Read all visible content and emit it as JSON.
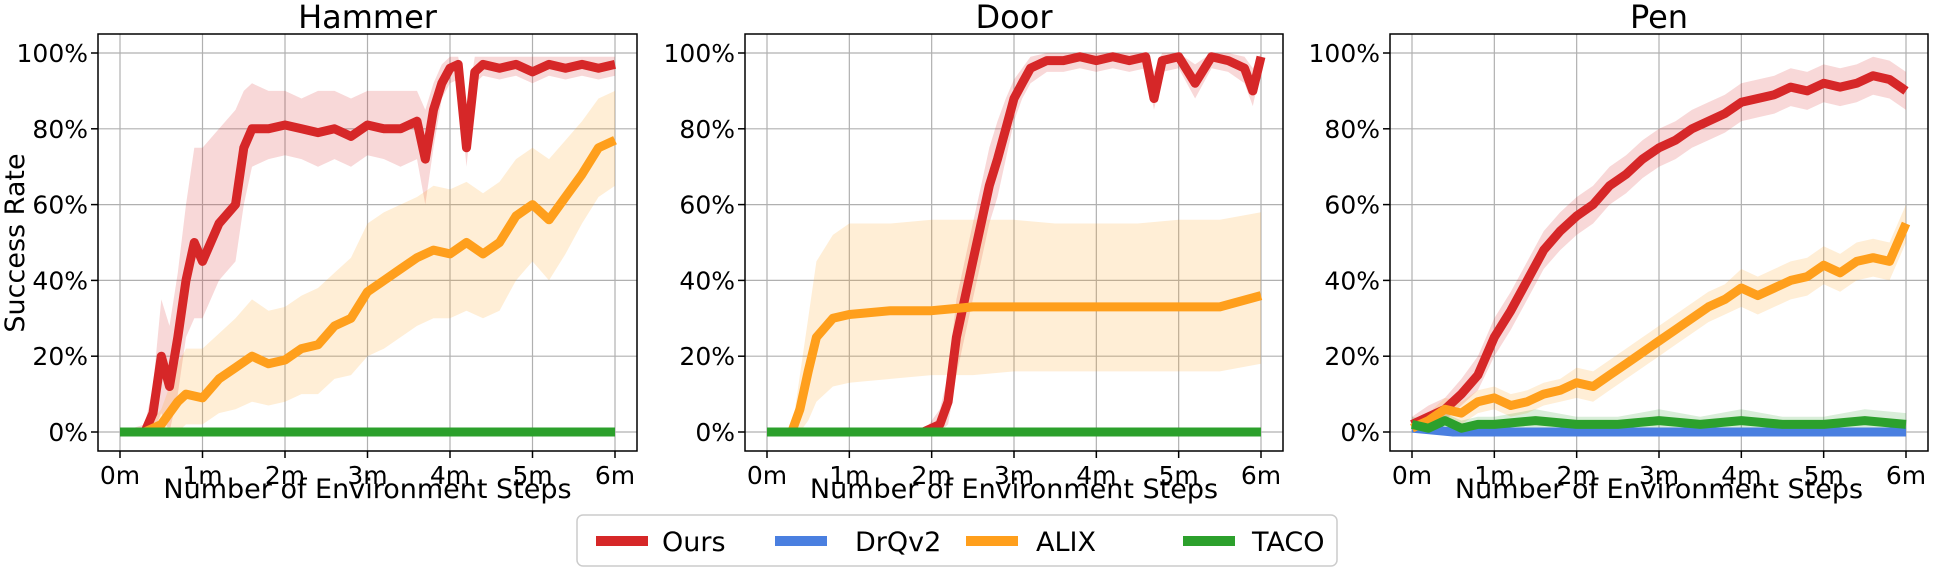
{
  "figure": {
    "ylabel": "Success Rate",
    "xlabel": "Number of Environment Steps",
    "legend": [
      "Ours",
      "DrQv2",
      "ALIX",
      "TACO"
    ],
    "legend_placement": "bottom-center"
  },
  "colors": {
    "Ours": "#d62728",
    "DrQv2": "#4a7fe0",
    "ALIX": "#ff9f1c",
    "TACO": "#2ca02c",
    "grid": "#b0b0b0"
  },
  "chart_data": [
    {
      "type": "line",
      "title": "Hammer",
      "xlabel": "Number of Environment Steps",
      "ylabel": "Success Rate",
      "xlim": [
        0,
        6
      ],
      "ylim": [
        0,
        100
      ],
      "x_ticks": [
        "0m",
        "1m",
        "2m",
        "3m",
        "4m",
        "5m",
        "6m"
      ],
      "y_ticks": [
        "0%",
        "20%",
        "40%",
        "60%",
        "80%",
        "100%"
      ],
      "grid": true,
      "series": [
        {
          "name": "Ours",
          "x": [
            0,
            0.3,
            0.4,
            0.5,
            0.6,
            0.7,
            0.8,
            0.9,
            1.0,
            1.2,
            1.4,
            1.5,
            1.6,
            1.8,
            2.0,
            2.2,
            2.4,
            2.6,
            2.8,
            3.0,
            3.2,
            3.4,
            3.6,
            3.7,
            3.8,
            3.9,
            4.0,
            4.1,
            4.2,
            4.3,
            4.4,
            4.6,
            4.8,
            5.0,
            5.2,
            5.4,
            5.6,
            5.8,
            6.0
          ],
          "y": [
            0,
            0,
            5,
            20,
            12,
            25,
            40,
            50,
            45,
            55,
            60,
            75,
            80,
            80,
            81,
            80,
            79,
            80,
            78,
            81,
            80,
            80,
            82,
            72,
            85,
            92,
            96,
            97,
            75,
            95,
            97,
            96,
            97,
            95,
            97,
            96,
            97,
            96,
            97
          ],
          "lower": [
            0,
            0,
            0,
            5,
            0,
            10,
            25,
            30,
            30,
            40,
            45,
            60,
            70,
            72,
            73,
            72,
            70,
            72,
            70,
            73,
            72,
            70,
            72,
            60,
            75,
            88,
            92,
            93,
            70,
            92,
            94,
            93,
            94,
            92,
            94,
            93,
            94,
            93,
            94
          ],
          "upper": [
            0,
            2,
            12,
            35,
            28,
            42,
            60,
            75,
            75,
            80,
            85,
            90,
            92,
            90,
            90,
            88,
            90,
            90,
            88,
            90,
            90,
            90,
            90,
            85,
            92,
            97,
            99,
            99,
            85,
            99,
            99,
            99,
            99,
            99,
            99,
            99,
            99,
            99,
            99
          ]
        },
        {
          "name": "DrQv2",
          "x": [
            0,
            6
          ],
          "y": [
            0,
            0
          ]
        },
        {
          "name": "ALIX",
          "x": [
            0,
            0.3,
            0.5,
            0.7,
            0.8,
            1.0,
            1.2,
            1.4,
            1.6,
            1.8,
            2.0,
            2.2,
            2.4,
            2.6,
            2.8,
            3.0,
            3.2,
            3.4,
            3.6,
            3.8,
            4.0,
            4.2,
            4.4,
            4.6,
            4.8,
            5.0,
            5.2,
            5.4,
            5.6,
            5.8,
            6.0
          ],
          "y": [
            0,
            0,
            2,
            8,
            10,
            9,
            14,
            17,
            20,
            18,
            19,
            22,
            23,
            28,
            30,
            37,
            40,
            43,
            46,
            48,
            47,
            50,
            47,
            50,
            57,
            60,
            56,
            62,
            68,
            75,
            77
          ],
          "lower": [
            0,
            0,
            0,
            0,
            2,
            2,
            5,
            6,
            8,
            7,
            8,
            10,
            10,
            14,
            15,
            20,
            22,
            25,
            28,
            30,
            30,
            32,
            30,
            32,
            40,
            45,
            40,
            47,
            55,
            62,
            65
          ],
          "upper": [
            0,
            1,
            6,
            18,
            22,
            22,
            26,
            30,
            35,
            32,
            33,
            36,
            38,
            42,
            46,
            55,
            58,
            60,
            62,
            65,
            64,
            66,
            63,
            66,
            72,
            75,
            72,
            77,
            82,
            88,
            90
          ]
        },
        {
          "name": "TACO",
          "x": [
            0,
            6
          ],
          "y": [
            0,
            0
          ]
        }
      ]
    },
    {
      "type": "line",
      "title": "Door",
      "xlabel": "Number of Environment Steps",
      "ylabel": "",
      "xlim": [
        0,
        6
      ],
      "ylim": [
        0,
        100
      ],
      "x_ticks": [
        "0m",
        "1m",
        "2m",
        "3m",
        "4m",
        "5m",
        "6m"
      ],
      "y_ticks": [
        "0%",
        "20%",
        "40%",
        "60%",
        "80%",
        "100%"
      ],
      "grid": true,
      "series": [
        {
          "name": "Ours",
          "x": [
            0,
            1.9,
            2.0,
            2.1,
            2.2,
            2.3,
            2.4,
            2.5,
            2.6,
            2.7,
            2.8,
            2.9,
            3.0,
            3.1,
            3.2,
            3.4,
            3.6,
            3.8,
            4.0,
            4.2,
            4.4,
            4.6,
            4.7,
            4.8,
            5.0,
            5.2,
            5.4,
            5.6,
            5.8,
            5.9,
            6.0
          ],
          "y": [
            0,
            0,
            1,
            2,
            8,
            25,
            35,
            45,
            55,
            65,
            72,
            80,
            88,
            92,
            96,
            98,
            98,
            99,
            98,
            99,
            98,
            99,
            88,
            98,
            99,
            92,
            99,
            98,
            96,
            90,
            99
          ],
          "lower": [
            0,
            0,
            0,
            0,
            2,
            15,
            25,
            35,
            45,
            55,
            62,
            72,
            82,
            88,
            92,
            95,
            95,
            96,
            95,
            96,
            95,
            96,
            85,
            95,
            96,
            88,
            96,
            95,
            92,
            86,
            96
          ],
          "upper": [
            0,
            0,
            3,
            6,
            15,
            35,
            45,
            55,
            65,
            75,
            82,
            88,
            93,
            96,
            99,
            100,
            100,
            100,
            100,
            100,
            100,
            100,
            95,
            100,
            100,
            97,
            100,
            100,
            99,
            96,
            100
          ]
        },
        {
          "name": "DrQv2",
          "x": [
            0,
            6
          ],
          "y": [
            0,
            0
          ]
        },
        {
          "name": "ALIX",
          "x": [
            0,
            0.3,
            0.4,
            0.5,
            0.6,
            0.8,
            1.0,
            1.5,
            2.0,
            2.5,
            3.0,
            3.5,
            4.0,
            4.5,
            5.0,
            5.5,
            6.0
          ],
          "y": [
            0,
            0,
            6,
            16,
            25,
            30,
            31,
            32,
            32,
            33,
            33,
            33,
            33,
            33,
            33,
            33,
            36
          ],
          "lower": [
            0,
            0,
            0,
            3,
            8,
            12,
            13,
            14,
            15,
            15,
            16,
            16,
            16,
            16,
            16,
            16,
            18
          ],
          "upper": [
            0,
            0,
            15,
            30,
            45,
            52,
            55,
            55,
            56,
            56,
            56,
            55,
            55,
            55,
            56,
            56,
            58
          ]
        },
        {
          "name": "TACO",
          "x": [
            0,
            6
          ],
          "y": [
            0,
            0
          ]
        }
      ]
    },
    {
      "type": "line",
      "title": "Pen",
      "xlabel": "Number of Environment Steps",
      "ylabel": "",
      "xlim": [
        0,
        6
      ],
      "ylim": [
        0,
        100
      ],
      "x_ticks": [
        "0m",
        "1m",
        "2m",
        "3m",
        "4m",
        "5m",
        "6m"
      ],
      "y_ticks": [
        "0%",
        "20%",
        "40%",
        "60%",
        "80%",
        "100%"
      ],
      "grid": true,
      "series": [
        {
          "name": "Ours",
          "x": [
            0,
            0.2,
            0.4,
            0.6,
            0.8,
            1.0,
            1.2,
            1.4,
            1.6,
            1.8,
            2.0,
            2.2,
            2.4,
            2.6,
            2.8,
            3.0,
            3.2,
            3.4,
            3.6,
            3.8,
            4.0,
            4.2,
            4.4,
            4.6,
            4.8,
            5.0,
            5.2,
            5.4,
            5.6,
            5.8,
            6.0
          ],
          "y": [
            2,
            4,
            6,
            10,
            15,
            25,
            32,
            40,
            48,
            53,
            57,
            60,
            65,
            68,
            72,
            75,
            77,
            80,
            82,
            84,
            87,
            88,
            89,
            91,
            90,
            92,
            91,
            92,
            94,
            93,
            90
          ],
          "lower": [
            0,
            1,
            3,
            7,
            11,
            20,
            27,
            35,
            43,
            48,
            52,
            55,
            60,
            63,
            67,
            70,
            72,
            75,
            77,
            79,
            82,
            83,
            84,
            86,
            85,
            87,
            86,
            87,
            89,
            88,
            85
          ],
          "upper": [
            4,
            7,
            9,
            14,
            20,
            30,
            37,
            45,
            53,
            58,
            62,
            65,
            70,
            73,
            77,
            80,
            82,
            85,
            87,
            89,
            92,
            93,
            94,
            96,
            95,
            97,
            96,
            97,
            99,
            98,
            95
          ]
        },
        {
          "name": "DrQv2",
          "x": [
            0,
            0.5,
            1,
            1.5,
            2,
            2.5,
            3,
            3.5,
            4,
            4.5,
            5,
            5.5,
            6
          ],
          "y": [
            1,
            0,
            0,
            0,
            0,
            0,
            0,
            0,
            0,
            0,
            0,
            0,
            0
          ],
          "lower": [
            0,
            0,
            0,
            0,
            0,
            0,
            0,
            0,
            0,
            0,
            0,
            0,
            0
          ],
          "upper": [
            2,
            1,
            1,
            1,
            1,
            1,
            1,
            1,
            1,
            1,
            1,
            1,
            1
          ]
        },
        {
          "name": "ALIX",
          "x": [
            0,
            0.2,
            0.4,
            0.6,
            0.8,
            1.0,
            1.2,
            1.4,
            1.6,
            1.8,
            2.0,
            2.2,
            2.4,
            2.6,
            2.8,
            3.0,
            3.2,
            3.4,
            3.6,
            3.8,
            4.0,
            4.2,
            4.4,
            4.6,
            4.8,
            5.0,
            5.2,
            5.4,
            5.6,
            5.8,
            6.0
          ],
          "y": [
            1,
            3,
            6,
            5,
            8,
            9,
            7,
            8,
            10,
            11,
            13,
            12,
            15,
            18,
            21,
            24,
            27,
            30,
            33,
            35,
            38,
            36,
            38,
            40,
            41,
            44,
            42,
            45,
            46,
            45,
            55
          ],
          "lower": [
            0,
            1,
            3,
            2,
            5,
            6,
            4,
            5,
            7,
            8,
            9,
            8,
            11,
            14,
            17,
            20,
            23,
            26,
            29,
            31,
            33,
            31,
            33,
            35,
            36,
            39,
            37,
            40,
            41,
            40,
            50
          ],
          "upper": [
            2,
            5,
            9,
            8,
            11,
            12,
            10,
            11,
            13,
            14,
            17,
            16,
            19,
            22,
            25,
            28,
            31,
            34,
            37,
            39,
            43,
            41,
            43,
            45,
            46,
            49,
            47,
            50,
            51,
            50,
            60
          ]
        },
        {
          "name": "TACO",
          "x": [
            0,
            0.2,
            0.4,
            0.6,
            0.8,
            1.0,
            1.5,
            2.0,
            2.5,
            3.0,
            3.5,
            4.0,
            4.5,
            5.0,
            5.5,
            6.0
          ],
          "y": [
            2,
            1,
            3,
            1,
            2,
            2,
            3,
            2,
            2,
            3,
            2,
            3,
            2,
            2,
            3,
            2
          ],
          "lower": [
            0,
            0,
            1,
            0,
            0,
            0,
            1,
            0,
            0,
            1,
            0,
            1,
            0,
            0,
            1,
            0
          ],
          "upper": [
            4,
            3,
            5,
            3,
            4,
            4,
            6,
            4,
            4,
            6,
            4,
            6,
            4,
            4,
            6,
            5
          ]
        }
      ]
    }
  ]
}
